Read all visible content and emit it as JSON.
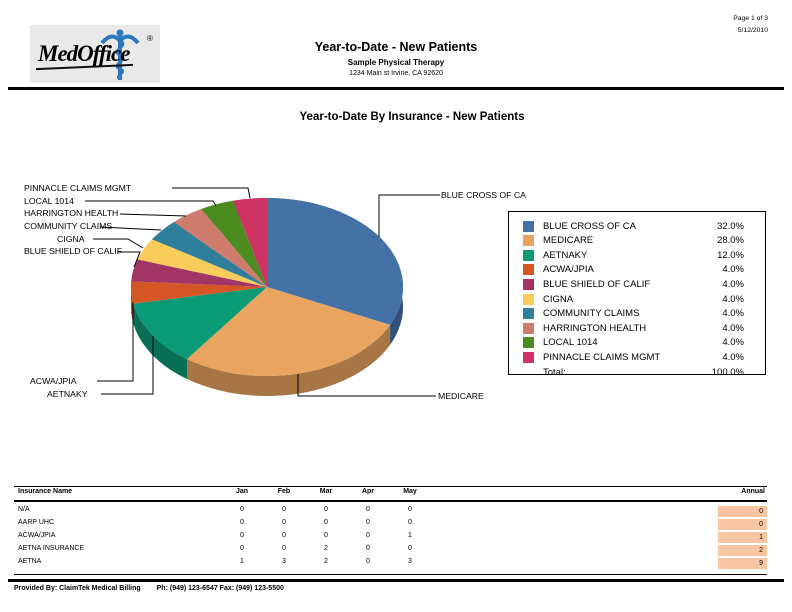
{
  "page": {
    "logo_text": "MedOffice",
    "logo_reg": "®",
    "page_number": "Page 1 of 3",
    "date": "5/12/2010",
    "header_title": "Year-to-Date - New Patients",
    "header_subtitle": "Sample Physical Therapy",
    "header_address": "1234 Main st Irvine, CA  92620",
    "footer_provided_by": "Provided By: ClaimTek Medical Billing",
    "footer_phone_fax": "Ph: (949) 123-6547 Fax: (949) 123-5500"
  },
  "chart_data": {
    "type": "pie",
    "title": "Year-to-Date By Insurance - New Patients",
    "legend_position": "right",
    "start_angle_deg": 0,
    "direction": "clockwise",
    "slices": [
      {
        "label": "BLUE CROSS OF CA",
        "pct": 32.0,
        "color": "#4471A6"
      },
      {
        "label": "MEDICARE",
        "pct": 28.0,
        "color": "#E9A45F"
      },
      {
        "label": "AETNAKY",
        "pct": 12.0,
        "color": "#0B9A76"
      },
      {
        "label": "ACWA/JPIA",
        "pct": 4.0,
        "color": "#D55625"
      },
      {
        "label": "BLUE SHIELD OF CALIF",
        "pct": 4.0,
        "color": "#A23566"
      },
      {
        "label": "CIGNA",
        "pct": 4.0,
        "color": "#F9CC5C"
      },
      {
        "label": "COMMUNITY CLAIMS",
        "pct": 4.0,
        "color": "#2F7F9B"
      },
      {
        "label": "HARRINGTON HEALTH",
        "pct": 4.0,
        "color": "#CD7C6E"
      },
      {
        "label": "LOCAL 1014",
        "pct": 4.0,
        "color": "#4C8B20"
      },
      {
        "label": "PINNACLE CLAIMS MGMT",
        "pct": 4.0,
        "color": "#CE3364"
      }
    ],
    "total_label": "Total:",
    "total_value": "100.0%"
  },
  "table": {
    "columns": [
      "Insurance Name",
      "Jan",
      "Feb",
      "Mar",
      "Apr",
      "May",
      "Annual"
    ],
    "annual_bg": "#F8C6A2",
    "rows": [
      {
        "name": "N/A",
        "values": [
          0,
          0,
          0,
          0,
          0
        ],
        "annual": 0
      },
      {
        "name": "AARP UHC",
        "values": [
          0,
          0,
          0,
          0,
          0
        ],
        "annual": 0
      },
      {
        "name": "ACWA/JPIA",
        "values": [
          0,
          0,
          0,
          0,
          1
        ],
        "annual": 1
      },
      {
        "name": "AETNA INSURANCE",
        "values": [
          0,
          0,
          2,
          0,
          0
        ],
        "annual": 2
      },
      {
        "name": "AETNA",
        "values": [
          1,
          3,
          2,
          0,
          3
        ],
        "annual": 9
      }
    ]
  }
}
